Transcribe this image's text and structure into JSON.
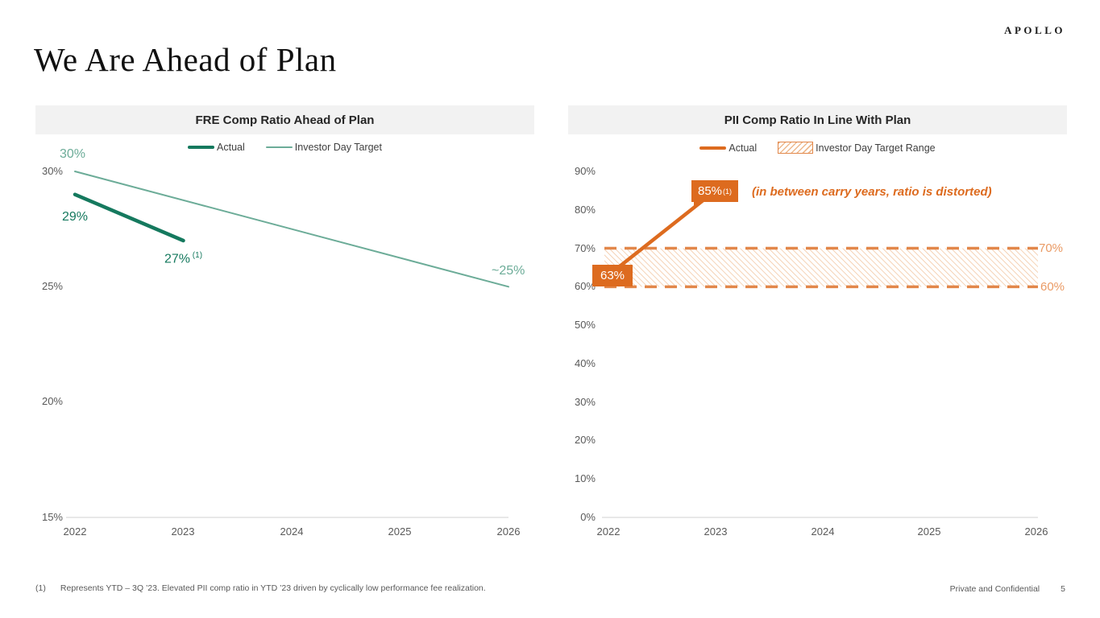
{
  "slide": {
    "logo": "APOLLO",
    "title": "We Are Ahead of Plan",
    "footnote_marker": "(1)",
    "footnote_text": "Represents YTD – 3Q ’23.  Elevated PII comp ratio in YTD ’23 driven by cyclically low performance fee realization.",
    "footer_right": "Private and Confidential",
    "page_number": "5"
  },
  "colors": {
    "teal_dark": "#15795e",
    "teal_light": "#6cac98",
    "orange": "#dd6b1f",
    "orange_light": "#ea9a64",
    "orange_dash": "#e2874a",
    "header_bg": "#f2f2f2",
    "axis_text": "#595959"
  },
  "chart_data": [
    {
      "type": "line",
      "title": "FRE Comp Ratio Ahead of Plan",
      "xlabel": "",
      "ylabel": "",
      "ylim": [
        15,
        30
      ],
      "grid": false,
      "legend_position": "top",
      "xticks": [
        "2022",
        "2023",
        "2024",
        "2025",
        "2026"
      ],
      "yticks": [
        "30%",
        "25%",
        "20%",
        "15%"
      ],
      "series": [
        {
          "name": "Actual",
          "x": [
            2022,
            2023
          ],
          "values": [
            29,
            27
          ],
          "color": "#15795e",
          "width": 4.5
        },
        {
          "name": "Investor Day Target",
          "x": [
            2022,
            2026
          ],
          "values": [
            30,
            25
          ],
          "color": "#6cac98",
          "width": 2
        }
      ],
      "labels": {
        "target_start": "30%",
        "actual_start": "29%",
        "actual_end": "27%",
        "actual_end_sup": " (1)",
        "target_end": "~25%"
      }
    },
    {
      "type": "line",
      "title": "PII Comp Ratio In Line With Plan",
      "xlabel": "",
      "ylabel": "",
      "ylim": [
        0,
        90
      ],
      "grid": false,
      "legend_position": "top",
      "xticks": [
        "2022",
        "2023",
        "2024",
        "2025",
        "2026"
      ],
      "yticks": [
        "90%",
        "80%",
        "70%",
        "60%",
        "50%",
        "40%",
        "30%",
        "20%",
        "10%",
        "0%"
      ],
      "series": [
        {
          "name": "Actual",
          "x": [
            2022,
            2023
          ],
          "values": [
            63,
            85
          ],
          "color": "#dd6b1f",
          "width": 4.5
        }
      ],
      "target_range": {
        "name": "Investor Day Target Range",
        "low": 60,
        "high": 70
      },
      "labels": {
        "actual_start": "63%",
        "actual_end": "85%",
        "actual_end_sup": "(1)",
        "band_top": "70%",
        "band_bottom": "60%",
        "annotation": "(in between carry years, ratio is distorted)"
      }
    }
  ]
}
